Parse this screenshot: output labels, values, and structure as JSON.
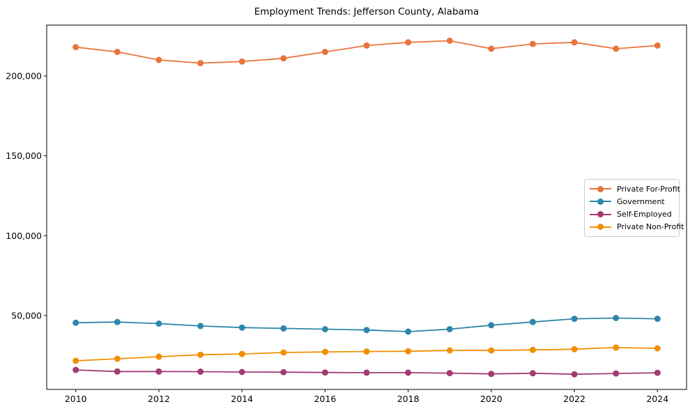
{
  "chart": {
    "title": "Employment Trends: Jefferson County, Alabama"
  },
  "chart_data": {
    "type": "line",
    "title": "Employment Trends: Jefferson County, Alabama",
    "xlabel": "",
    "ylabel": "",
    "grid": false,
    "marker": "o",
    "legend_position": "center right",
    "x": [
      2010,
      2011,
      2012,
      2013,
      2014,
      2015,
      2016,
      2017,
      2018,
      2019,
      2020,
      2021,
      2022,
      2023,
      2024
    ],
    "series": [
      {
        "name": "Private For-Profit",
        "color": "#e8743b",
        "values": [
          218000,
          215000,
          210000,
          208000,
          209000,
          211000,
          215000,
          219000,
          221000,
          222000,
          217000,
          220000,
          221000,
          217000,
          219000
        ]
      },
      {
        "name": "Government",
        "color": "#2e86ab",
        "values": [
          45500,
          46000,
          45000,
          43500,
          42500,
          42000,
          41500,
          41000,
          40000,
          41500,
          44000,
          46000,
          48000,
          48500,
          48000
        ]
      },
      {
        "name": "Self-Employed",
        "color": "#a23b72",
        "values": [
          16000,
          15000,
          15000,
          14900,
          14700,
          14600,
          14400,
          14300,
          14300,
          14000,
          13500,
          13900,
          13300,
          13800,
          14200
        ]
      },
      {
        "name": "Private Non-Profit",
        "color": "#f18f01",
        "values": [
          21700,
          23000,
          24300,
          25500,
          26000,
          26900,
          27300,
          27500,
          27700,
          28200,
          28200,
          28500,
          29000,
          30000,
          29500
        ]
      }
    ],
    "xlim": [
      2009.3,
      2024.7
    ],
    "ylim": [
      3800,
      231800
    ],
    "x_tick_values": [
      2010,
      2012,
      2014,
      2016,
      2018,
      2020,
      2022,
      2024
    ],
    "x_tick_labels": [
      "2010",
      "2012",
      "2014",
      "2016",
      "2018",
      "2020",
      "2022",
      "2024"
    ],
    "y_tick_values": [
      50000,
      100000,
      150000,
      200000
    ],
    "y_tick_labels": [
      "50,000",
      "100,000",
      "150,000",
      "200,000"
    ]
  }
}
